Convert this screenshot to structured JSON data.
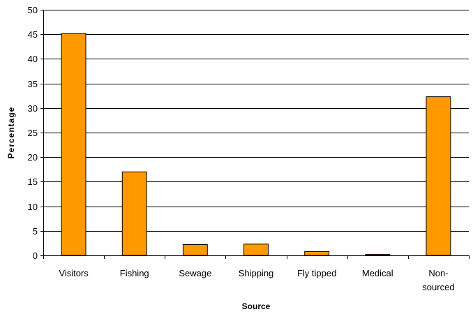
{
  "chart_data": {
    "type": "bar",
    "xlabel": "Source",
    "ylabel": "Percentage",
    "categories": [
      [
        "Visitors"
      ],
      [
        "Fishing"
      ],
      [
        "Sewage"
      ],
      [
        "Shipping"
      ],
      [
        "Fly tipped"
      ],
      [
        "Medical"
      ],
      [
        "Non-",
        "sourced"
      ]
    ],
    "values": [
      45.2,
      17.0,
      2.2,
      2.3,
      0.8,
      0.2,
      32.3
    ],
    "ylim": [
      0,
      50
    ],
    "yticks": [
      0,
      5,
      10,
      15,
      20,
      25,
      30,
      35,
      40,
      45,
      50
    ],
    "grid": true,
    "bar_color": "#FF9900"
  }
}
